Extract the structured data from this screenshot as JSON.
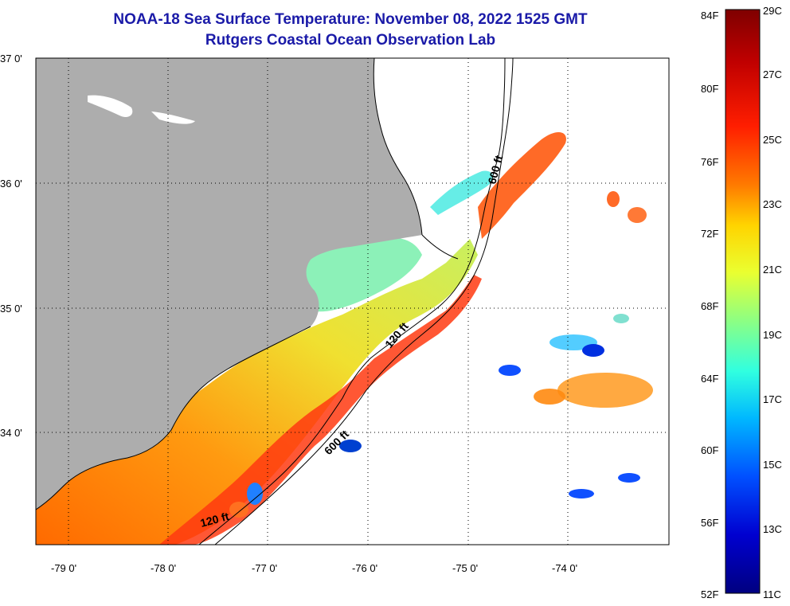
{
  "title_line1": "NOAA-18 Sea Surface Temperature:  November 08, 2022 1525 GMT",
  "title_line2": "Rutgers Coastal Ocean Observation Lab",
  "lat_ticks": [
    "37 0'",
    "36 0'",
    "35 0'",
    "34 0'"
  ],
  "lon_ticks": [
    "-79 0'",
    "-78 0'",
    "-77 0'",
    "-76 0'",
    "-75 0'",
    "-74 0'"
  ],
  "colorbar": {
    "fahrenheit": [
      "84F",
      "80F",
      "76F",
      "72F",
      "68F",
      "64F",
      "60F",
      "56F",
      "52F"
    ],
    "celsius": [
      "29C",
      "27C",
      "25C",
      "23C",
      "21C",
      "19C",
      "17C",
      "15C",
      "13C",
      "11C"
    ],
    "colors": [
      "#7f0000",
      "#c40000",
      "#ff2000",
      "#ff7f00",
      "#ffd000",
      "#f5ff20",
      "#b0ff60",
      "#40ffd0",
      "#00c0ff",
      "#0050ff",
      "#0000c0",
      "#000080"
    ]
  },
  "contour_labels": [
    "600 ft",
    "120 ft",
    "600 ft",
    "120 ft"
  ],
  "colors": {
    "land": "#adadad",
    "title": "#1a1aa8"
  }
}
